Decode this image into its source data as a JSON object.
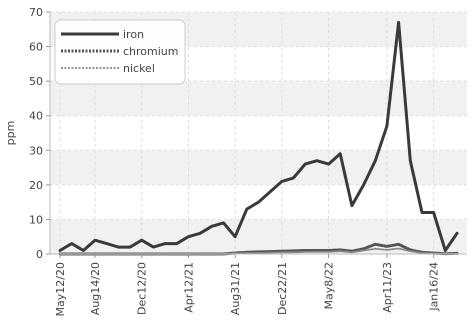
{
  "chart_data": {
    "type": "line",
    "title": "",
    "xlabel": "",
    "ylabel": "ppm",
    "ylim": [
      0,
      70
    ],
    "yticks": [
      0,
      10,
      20,
      30,
      40,
      50,
      60,
      70
    ],
    "xtick_labels": [
      "May12/20",
      "Aug14/20",
      "Dec12/20",
      "Apr12/21",
      "Aug31/21",
      "Dec22/21",
      "May8/22",
      "Apr11/23",
      "Jan16/24"
    ],
    "x": [
      "May12/20",
      "Jun10/20",
      "Jul12/20",
      "Aug14/20",
      "Sep20/20",
      "Oct22/20",
      "Nov20/20",
      "Dec12/20",
      "Jan12/21",
      "Feb15/21",
      "Mar14/21",
      "Apr12/21",
      "May15/21",
      "Jun20/21",
      "Jul22/21",
      "Aug31/21",
      "Sep20/21",
      "Oct22/21",
      "Nov20/21",
      "Dec22/21",
      "Jan26/22",
      "Feb22/22",
      "Mar15/22",
      "May8/22",
      "Jun20/22",
      "Aug15/22",
      "Oct20/22",
      "Jan10/23",
      "Apr11/23",
      "Jun12/23",
      "Aug14/23",
      "Oct20/23",
      "Jan16/24",
      "Mar15/24",
      "May10/24"
    ],
    "legend_position": "top-left",
    "grid": true,
    "series": [
      {
        "name": "iron",
        "color": "#3a3a3a",
        "style": "solid",
        "values": [
          1,
          3,
          1,
          4,
          3,
          2,
          2,
          4,
          2,
          3,
          3,
          5,
          6,
          8,
          9,
          5,
          13,
          15,
          18,
          21,
          22,
          26,
          27,
          26,
          29,
          14,
          20,
          27,
          37,
          67,
          27,
          12,
          12,
          1,
          6
        ]
      },
      {
        "name": "chromium",
        "color": "#555555",
        "style": "dashed",
        "values": [
          0,
          0,
          0,
          0,
          0,
          0,
          0,
          0,
          0,
          0,
          0,
          0,
          0,
          0,
          0,
          0.3,
          0.5,
          0.6,
          0.7,
          0.8,
          0.9,
          1,
          1,
          1,
          1.2,
          0.8,
          1.5,
          2.8,
          2.2,
          2.8,
          1.2,
          0.5,
          0.3,
          0.1,
          0.2
        ]
      },
      {
        "name": "nickel",
        "color": "#888888",
        "style": "dashed",
        "values": [
          0,
          0,
          0,
          0,
          0,
          0,
          0,
          0,
          0,
          0,
          0,
          0,
          0,
          0,
          0,
          0.2,
          0.3,
          0.3,
          0.4,
          0.5,
          0.5,
          0.6,
          0.6,
          0.6,
          0.8,
          0.5,
          1,
          1.5,
          1.2,
          1.6,
          0.8,
          0.3,
          0.2,
          0.1,
          0.1
        ]
      }
    ]
  }
}
